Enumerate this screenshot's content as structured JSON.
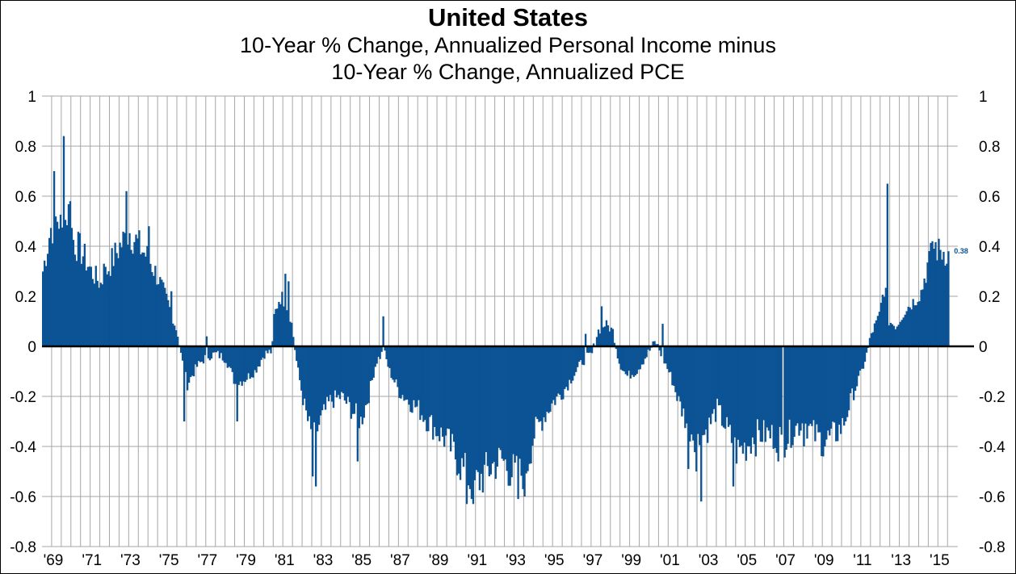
{
  "chart_data": {
    "type": "bar",
    "title": "United States",
    "subtitle_lines": [
      "10-Year % Change, Annualized Personal Income minus",
      "10-Year % Change, Annualized PCE"
    ],
    "ylim": [
      -0.8,
      1
    ],
    "yticks": [
      {
        "value": 1,
        "label": "1"
      },
      {
        "value": 0.8,
        "label": "0.8"
      },
      {
        "value": 0.6,
        "label": "0.6"
      },
      {
        "value": 0.4,
        "label": "0.4"
      },
      {
        "value": 0.2,
        "label": "0.2"
      },
      {
        "value": 0,
        "label": "0"
      },
      {
        "value": -0.2,
        "label": "-0.2"
      },
      {
        "value": -0.4,
        "label": "-0.4"
      },
      {
        "value": -0.6,
        "label": "-0.6"
      },
      {
        "value": -0.8,
        "label": "-0.8"
      }
    ],
    "xlim": [
      1969,
      2016.2
    ],
    "xticks": [
      {
        "value": 1969,
        "label": "'69"
      },
      {
        "value": 1971,
        "label": "'71"
      },
      {
        "value": 1973,
        "label": "'73"
      },
      {
        "value": 1975,
        "label": "'75"
      },
      {
        "value": 1977,
        "label": "'77"
      },
      {
        "value": 1979,
        "label": "'79"
      },
      {
        "value": 1981,
        "label": "'81"
      },
      {
        "value": 1983,
        "label": "'83"
      },
      {
        "value": 1985,
        "label": "'85"
      },
      {
        "value": 1987,
        "label": "'87"
      },
      {
        "value": 1989,
        "label": "'89"
      },
      {
        "value": 1991,
        "label": "'91"
      },
      {
        "value": 1993,
        "label": "'93"
      },
      {
        "value": 1995,
        "label": "'95"
      },
      {
        "value": 1997,
        "label": "'97"
      },
      {
        "value": 1999,
        "label": "'99"
      },
      {
        "value": 2001,
        "label": "'01"
      },
      {
        "value": 2003,
        "label": "'03"
      },
      {
        "value": 2005,
        "label": "'05"
      },
      {
        "value": 2007,
        "label": "'07"
      },
      {
        "value": 2009,
        "label": "'09"
      },
      {
        "value": 2011,
        "label": "'11"
      },
      {
        "value": 2013,
        "label": "'13"
      },
      {
        "value": 2015,
        "label": "'15"
      }
    ],
    "grid": true,
    "dual_y_axis": true,
    "bar_color": "#0b5394",
    "last_value": 0.38,
    "last_value_label": "0.38",
    "series": [
      {
        "frequency": "monthly",
        "start": 1969.0,
        "anchors": [
          [
            1969.0,
            0.3
          ],
          [
            1969.4,
            0.47
          ],
          [
            1969.8,
            0.52
          ],
          [
            1970.0,
            0.45
          ],
          [
            1970.3,
            0.55
          ],
          [
            1970.6,
            0.42
          ],
          [
            1971.0,
            0.38
          ],
          [
            1971.5,
            0.3
          ],
          [
            1972.0,
            0.25
          ],
          [
            1972.5,
            0.33
          ],
          [
            1973.0,
            0.4
          ],
          [
            1973.5,
            0.46
          ],
          [
            1974.0,
            0.4
          ],
          [
            1974.5,
            0.35
          ],
          [
            1975.0,
            0.27
          ],
          [
            1975.5,
            0.17
          ],
          [
            1976.0,
            0.05
          ],
          [
            1976.2,
            -0.05
          ],
          [
            1976.5,
            -0.15
          ],
          [
            1977.0,
            -0.08
          ],
          [
            1977.5,
            -0.04
          ],
          [
            1978.0,
            -0.03
          ],
          [
            1978.5,
            -0.05
          ],
          [
            1979.0,
            -0.15
          ],
          [
            1979.5,
            -0.13
          ],
          [
            1980.0,
            -0.1
          ],
          [
            1980.5,
            -0.03
          ],
          [
            1980.9,
            -0.02
          ],
          [
            1981.0,
            0.12
          ],
          [
            1981.3,
            0.2
          ],
          [
            1981.6,
            0.18
          ],
          [
            1981.9,
            0.1
          ],
          [
            1982.2,
            -0.08
          ],
          [
            1982.6,
            -0.25
          ],
          [
            1983.0,
            -0.38
          ],
          [
            1983.4,
            -0.3
          ],
          [
            1983.9,
            -0.22
          ],
          [
            1984.5,
            -0.2
          ],
          [
            1985.0,
            -0.25
          ],
          [
            1985.5,
            -0.3
          ],
          [
            1985.9,
            -0.2
          ],
          [
            1986.3,
            -0.06
          ],
          [
            1986.7,
            -0.02
          ],
          [
            1987.0,
            -0.1
          ],
          [
            1987.5,
            -0.18
          ],
          [
            1988.0,
            -0.22
          ],
          [
            1988.5,
            -0.25
          ],
          [
            1989.0,
            -0.3
          ],
          [
            1989.5,
            -0.34
          ],
          [
            1990.0,
            -0.38
          ],
          [
            1990.5,
            -0.45
          ],
          [
            1991.0,
            -0.52
          ],
          [
            1991.4,
            -0.56
          ],
          [
            1991.8,
            -0.52
          ],
          [
            1992.3,
            -0.48
          ],
          [
            1992.8,
            -0.45
          ],
          [
            1993.3,
            -0.5
          ],
          [
            1993.7,
            -0.52
          ],
          [
            1994.1,
            -0.48
          ],
          [
            1994.5,
            -0.35
          ],
          [
            1995.0,
            -0.28
          ],
          [
            1995.5,
            -0.22
          ],
          [
            1996.0,
            -0.18
          ],
          [
            1996.5,
            -0.12
          ],
          [
            1997.0,
            -0.06
          ],
          [
            1997.5,
            -0.03
          ],
          [
            1997.8,
            0.06
          ],
          [
            1998.2,
            0.09
          ],
          [
            1998.6,
            0.06
          ],
          [
            1998.9,
            -0.06
          ],
          [
            1999.3,
            -0.12
          ],
          [
            1999.8,
            -0.1
          ],
          [
            2000.3,
            -0.04
          ],
          [
            2000.8,
            0.02
          ],
          [
            2001.2,
            -0.05
          ],
          [
            2001.6,
            -0.12
          ],
          [
            2002.0,
            -0.22
          ],
          [
            2002.5,
            -0.32
          ],
          [
            2003.0,
            -0.38
          ],
          [
            2003.5,
            -0.33
          ],
          [
            2004.0,
            -0.25
          ],
          [
            2004.5,
            -0.33
          ],
          [
            2005.0,
            -0.42
          ],
          [
            2005.5,
            -0.4
          ],
          [
            2006.0,
            -0.35
          ],
          [
            2006.5,
            -0.35
          ],
          [
            2007.0,
            -0.36
          ],
          [
            2007.5,
            -0.38
          ],
          [
            2008.0,
            -0.33
          ],
          [
            2008.5,
            -0.3
          ],
          [
            2009.0,
            -0.35
          ],
          [
            2009.5,
            -0.38
          ],
          [
            2010.0,
            -0.36
          ],
          [
            2010.5,
            -0.32
          ],
          [
            2011.0,
            -0.2
          ],
          [
            2011.5,
            -0.1
          ],
          [
            2011.8,
            -0.02
          ],
          [
            2012.0,
            0.05
          ],
          [
            2012.4,
            0.12
          ],
          [
            2012.7,
            0.25
          ],
          [
            2012.9,
            0.1
          ],
          [
            2013.3,
            0.08
          ],
          [
            2013.8,
            0.15
          ],
          [
            2014.2,
            0.18
          ],
          [
            2014.6,
            0.22
          ],
          [
            2014.9,
            0.32
          ],
          [
            2015.3,
            0.4
          ],
          [
            2015.6,
            0.38
          ],
          [
            2016.0,
            0.38
          ]
        ],
        "spikes": [
          [
            1969.6,
            0.7
          ],
          [
            1970.05,
            0.84
          ],
          [
            1970.4,
            0.58
          ],
          [
            1972.2,
            0.33
          ],
          [
            1973.3,
            0.62
          ],
          [
            1974.5,
            0.48
          ],
          [
            1975.7,
            0.22
          ],
          [
            1976.3,
            -0.3
          ],
          [
            1977.5,
            0.04
          ],
          [
            1979.1,
            -0.3
          ],
          [
            1981.6,
            0.29
          ],
          [
            1981.75,
            0.26
          ],
          [
            1983.0,
            -0.52
          ],
          [
            1983.2,
            -0.56
          ],
          [
            1985.3,
            -0.46
          ],
          [
            1986.7,
            0.12
          ],
          [
            1991.0,
            -0.63
          ],
          [
            1991.3,
            -0.63
          ],
          [
            1993.7,
            -0.61
          ],
          [
            1994.0,
            -0.6
          ],
          [
            1997.2,
            0.05
          ],
          [
            1998.0,
            0.16
          ],
          [
            2001.2,
            0.09
          ],
          [
            2002.5,
            -0.49
          ],
          [
            2002.9,
            -0.5
          ],
          [
            2003.2,
            -0.62
          ],
          [
            2004.8,
            -0.56
          ],
          [
            2006.0,
            -0.44
          ],
          [
            2007.2,
            -0.46
          ],
          [
            2007.4,
            0.0
          ],
          [
            2008.5,
            -0.4
          ],
          [
            2009.5,
            -0.44
          ],
          [
            2010.7,
            -0.3
          ],
          [
            2012.8,
            0.65
          ],
          [
            2015.2,
            0.42
          ],
          [
            2015.5,
            0.43
          ]
        ]
      }
    ]
  }
}
